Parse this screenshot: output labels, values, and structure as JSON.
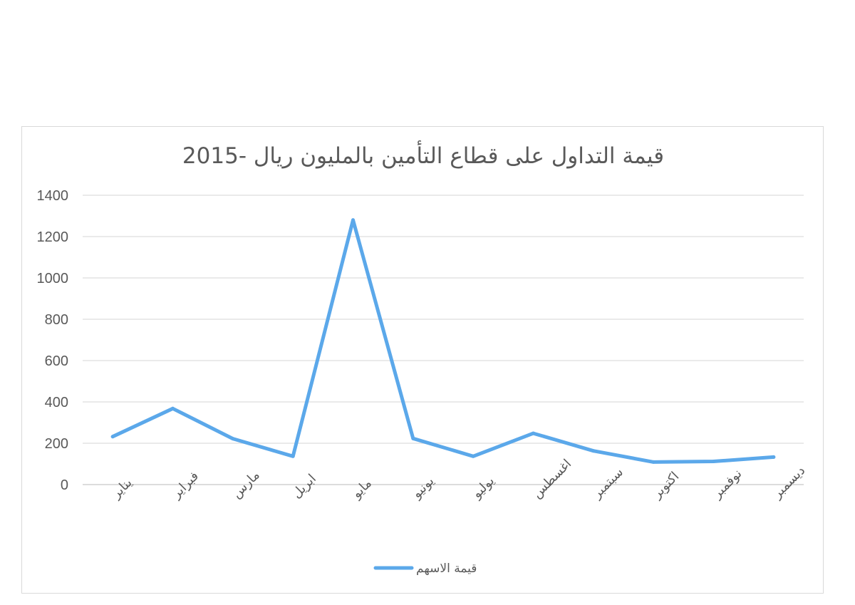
{
  "chart_data": {
    "type": "line",
    "title": "قيمة التداول على قطاع التأمين بالمليون ريال -2015",
    "categories": [
      "يناير",
      "فبراير",
      "مارس",
      "ابريل",
      "مايو",
      "يونيو",
      "يوليو",
      "اغسطس",
      "سبتمبر",
      "اكتوبر",
      "نوفمبر",
      "ديسمبر"
    ],
    "series": [
      {
        "name": "قيمة الاسهم",
        "color": "#5ba8ea",
        "values": [
          232,
          368,
          222,
          137,
          1280,
          223,
          137,
          248,
          163,
          109,
          112,
          133
        ]
      }
    ],
    "ylim": [
      0,
      1400
    ],
    "yticks": [
      "0",
      "200",
      "400",
      "600",
      "800",
      "1000",
      "1200",
      "1400"
    ],
    "grid": true,
    "legend": "bottom"
  }
}
